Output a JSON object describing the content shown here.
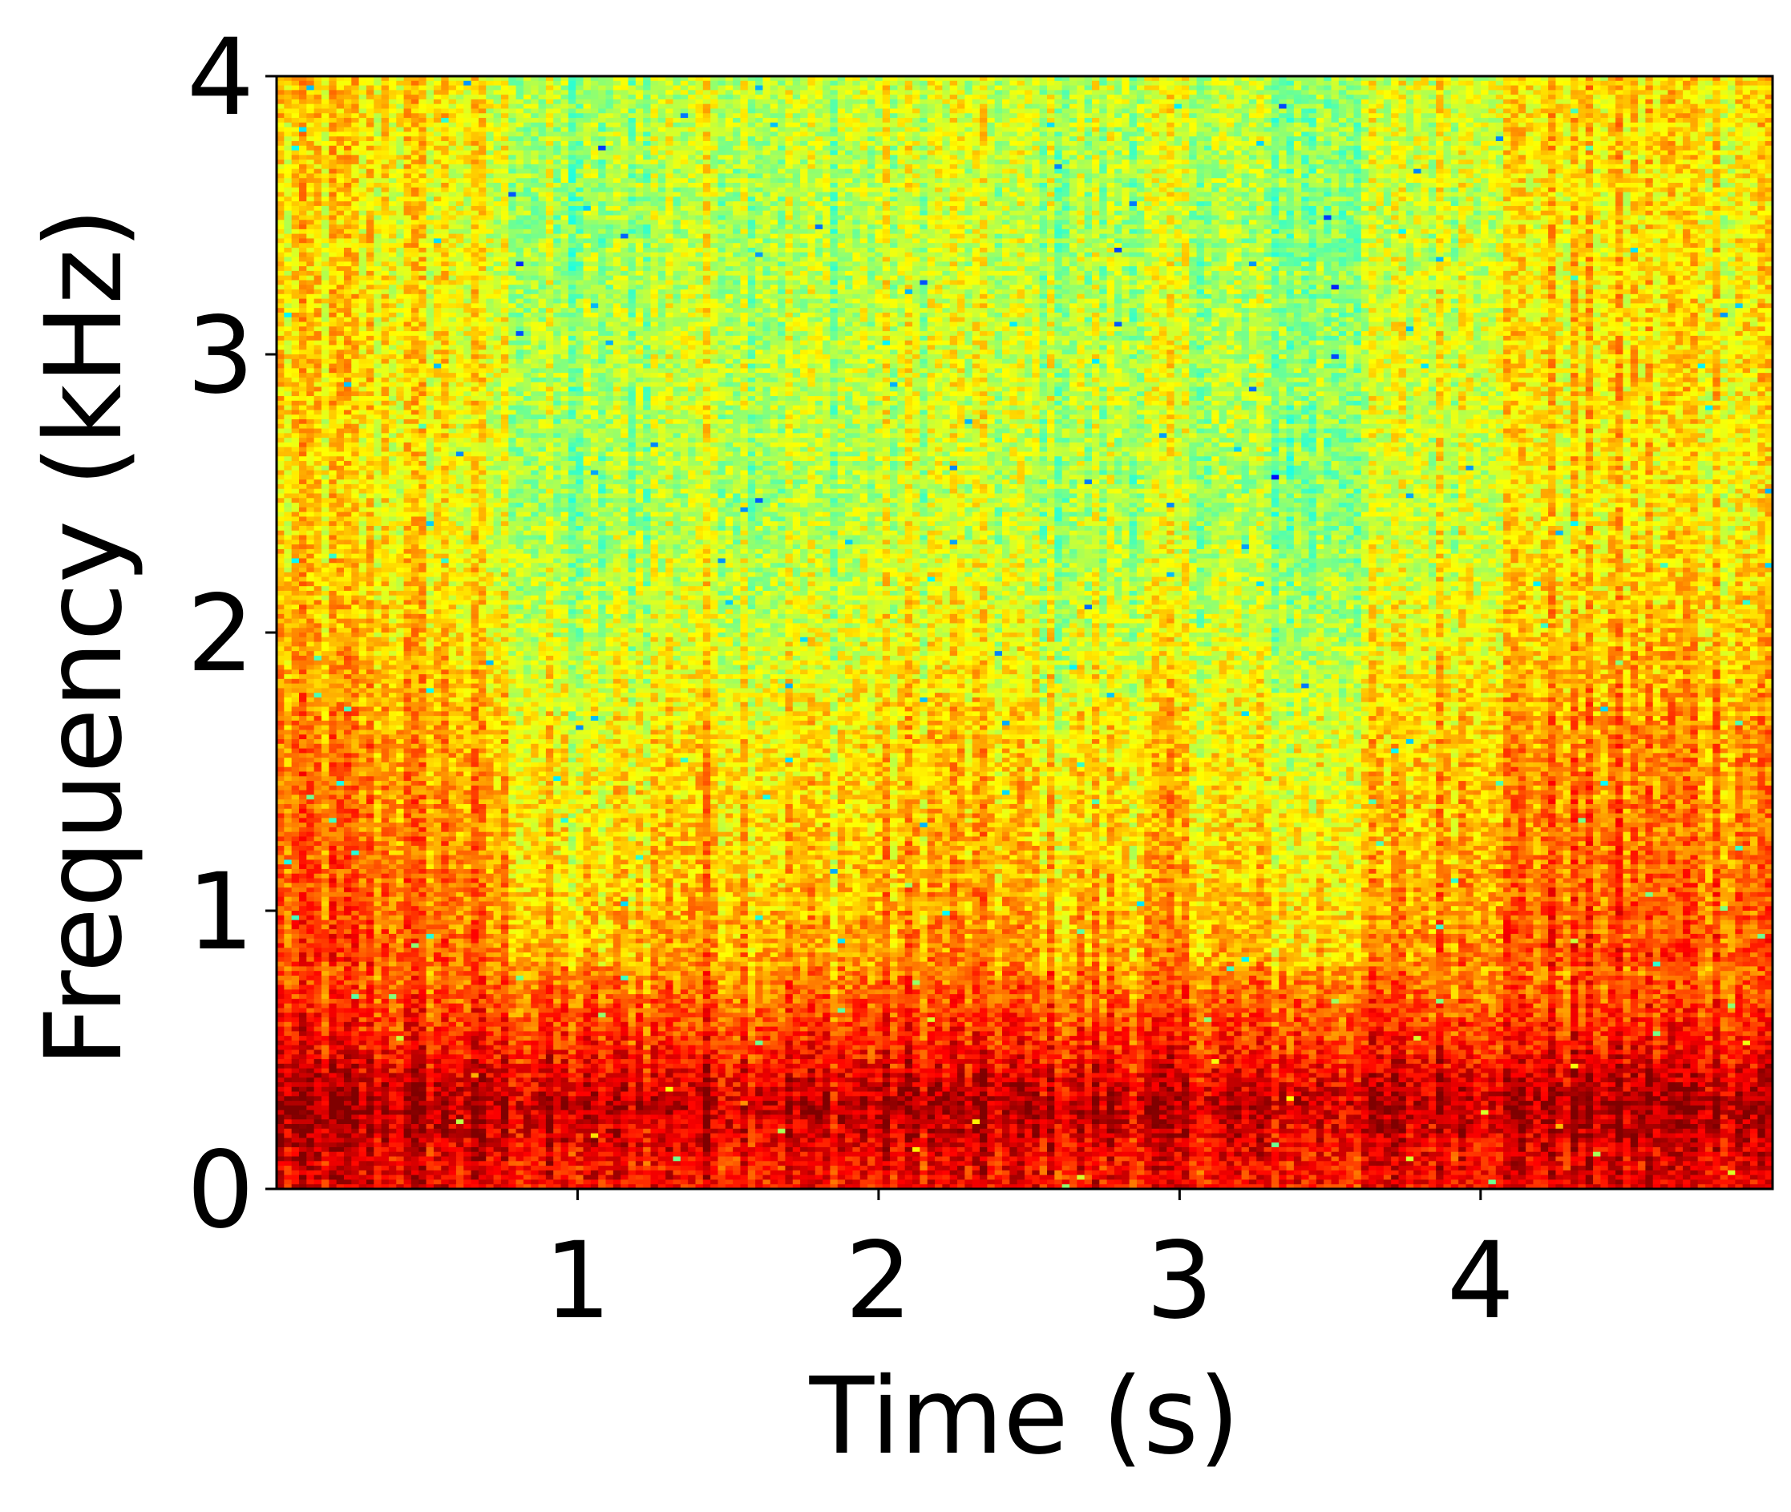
{
  "chart_data": {
    "type": "heatmap",
    "subtype": "spectrogram",
    "title": "",
    "xlabel": "Time (s)",
    "ylabel": "Frequency (kHz)",
    "xlim": [
      0,
      4.97
    ],
    "ylim": [
      0,
      4
    ],
    "x_ticks": [
      1,
      2,
      3,
      4
    ],
    "x_tick_labels": [
      "1",
      "2",
      "3",
      "4"
    ],
    "y_ticks": [
      0,
      1,
      2,
      3,
      4
    ],
    "y_tick_labels": [
      "0",
      "1",
      "2",
      "3",
      "4"
    ],
    "colormap": "jet",
    "visible_color_range": [
      "#00d0ff",
      "#800000"
    ],
    "grid": false,
    "legend": "none",
    "description_of_values": "relative energy, high (dark red) concentrated below 0.6 kHz; mid frequencies orange/yellow; 2-4 kHz yellow/green with lower energy around 0.8-1.4 s and 2.5-3.7 s",
    "band_energy_profile": [
      {
        "freq_khz": 0.1,
        "level": 0.88
      },
      {
        "freq_khz": 0.3,
        "level": 0.95
      },
      {
        "freq_khz": 0.5,
        "level": 0.85
      },
      {
        "freq_khz": 0.8,
        "level": 0.75
      },
      {
        "freq_khz": 1.2,
        "level": 0.7
      },
      {
        "freq_khz": 1.6,
        "level": 0.68
      },
      {
        "freq_khz": 2.0,
        "level": 0.62
      },
      {
        "freq_khz": 2.5,
        "level": 0.58
      },
      {
        "freq_khz": 3.0,
        "level": 0.6
      },
      {
        "freq_khz": 3.5,
        "level": 0.58
      },
      {
        "freq_khz": 3.9,
        "level": 0.6
      }
    ],
    "time_energy_profile": [
      {
        "time_s": 0.2,
        "level": 0.72
      },
      {
        "time_s": 0.6,
        "level": 0.7
      },
      {
        "time_s": 1.0,
        "level": 0.58
      },
      {
        "time_s": 1.4,
        "level": 0.66
      },
      {
        "time_s": 1.8,
        "level": 0.62
      },
      {
        "time_s": 2.2,
        "level": 0.66
      },
      {
        "time_s": 2.6,
        "level": 0.62
      },
      {
        "time_s": 3.0,
        "level": 0.64
      },
      {
        "time_s": 3.4,
        "level": 0.58
      },
      {
        "time_s": 3.8,
        "level": 0.66
      },
      {
        "time_s": 4.2,
        "level": 0.72
      },
      {
        "time_s": 4.6,
        "level": 0.72
      }
    ]
  }
}
